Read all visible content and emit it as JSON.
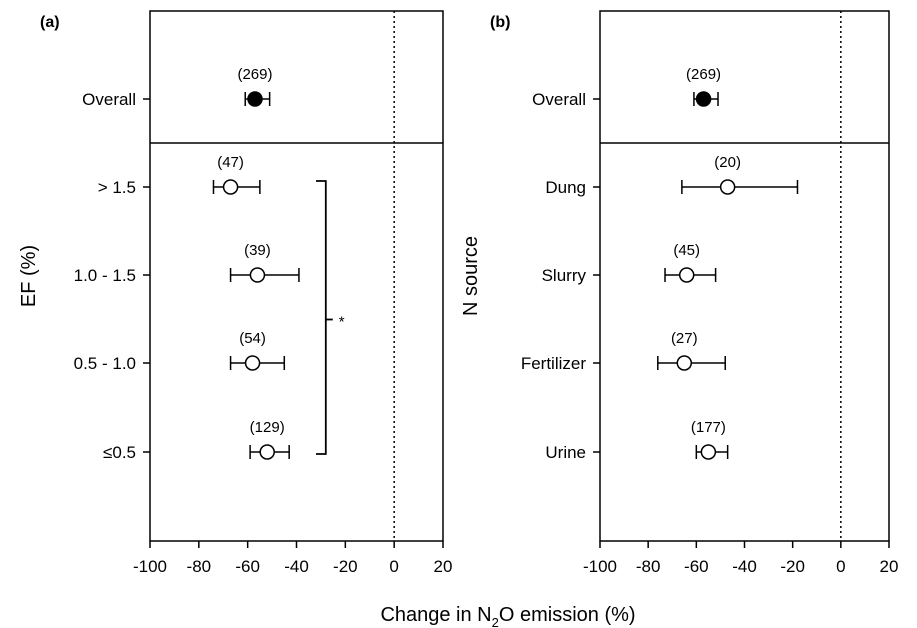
{
  "xlabel": {
    "pre": "Change in N",
    "sub": "2",
    "post": "O emission (%)"
  },
  "chart_data": [
    {
      "type": "forest",
      "panel_label": "(a)",
      "ylabel": "EF (%)",
      "xlim": [
        -100,
        20
      ],
      "xticks": [
        -100,
        -80,
        -60,
        -40,
        -20,
        0,
        20
      ],
      "reference_line_x": 0,
      "overall": {
        "label": "Overall",
        "n": "(269)",
        "mean": -57,
        "ci": [
          -61,
          -51
        ]
      },
      "groups": [
        {
          "label": "> 1.5",
          "n": "(47)",
          "mean": -67,
          "ci": [
            -74,
            -55
          ]
        },
        {
          "label": "1.0 - 1.5",
          "n": "(39)",
          "mean": -56,
          "ci": [
            -67,
            -39
          ]
        },
        {
          "label": "0.5 - 1.0",
          "n": "(54)",
          "mean": -58,
          "ci": [
            -67,
            -45
          ]
        },
        {
          "label": "≤0.5",
          "n": "(129)",
          "mean": -52,
          "ci": [
            -59,
            -43
          ]
        }
      ],
      "significance_bracket": {
        "label": "*",
        "from_group": 0,
        "to_group": 3
      }
    },
    {
      "type": "forest",
      "panel_label": "(b)",
      "ylabel": "N source",
      "xlim": [
        -100,
        20
      ],
      "xticks": [
        -100,
        -80,
        -60,
        -40,
        -20,
        0,
        20
      ],
      "reference_line_x": 0,
      "overall": {
        "label": "Overall",
        "n": "(269)",
        "mean": -57,
        "ci": [
          -61,
          -51
        ]
      },
      "groups": [
        {
          "label": "Dung",
          "n": "(20)",
          "mean": -47,
          "ci": [
            -66,
            -18
          ]
        },
        {
          "label": "Slurry",
          "n": "(45)",
          "mean": -64,
          "ci": [
            -73,
            -52
          ]
        },
        {
          "label": "Fertilizer",
          "n": "(27)",
          "mean": -65,
          "ci": [
            -76,
            -48
          ]
        },
        {
          "label": "Urine",
          "n": "(177)",
          "mean": -55,
          "ci": [
            -60,
            -47
          ]
        }
      ]
    }
  ]
}
